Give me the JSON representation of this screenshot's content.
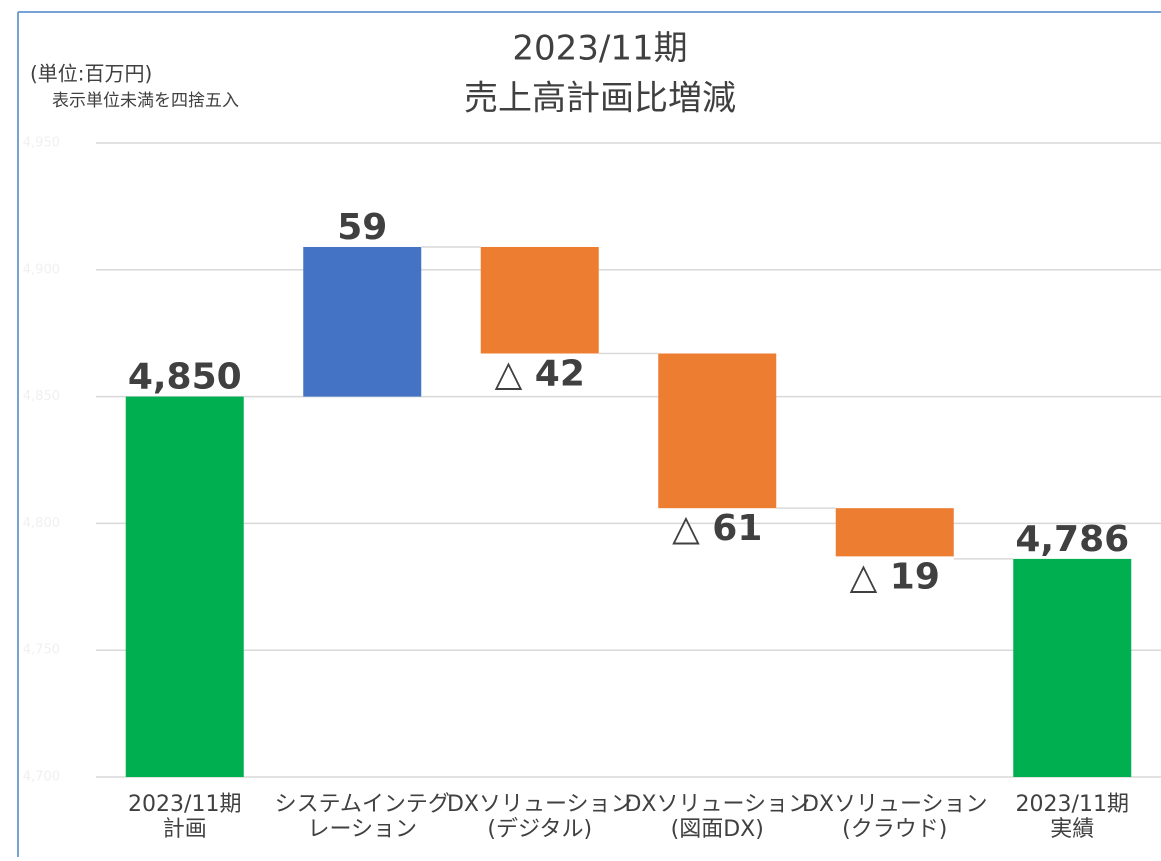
{
  "chart_data": {
    "type": "waterfall",
    "title": "2023/11期",
    "subtitle": "売上高計画比増減",
    "annotations": [
      "(単位:百万円)",
      "表示単位未満を四捨五入"
    ],
    "categories": [
      [
        "2023/11期",
        "計画"
      ],
      [
        "システムインテグ",
        "レーション"
      ],
      [
        "DXソリューション",
        "(デジタル)"
      ],
      [
        "DXソリューション",
        "(図面DX)"
      ],
      [
        "DXソリューション",
        "(クラウド)"
      ],
      [
        "2023/11期",
        "実績"
      ]
    ],
    "values": [
      4850,
      59,
      -42,
      -61,
      -19,
      4786
    ],
    "value_labels": [
      "4,850",
      "59",
      "△ 42",
      "△ 61",
      "△ 19",
      "4,786"
    ],
    "measure": [
      "absolute",
      "relative",
      "relative",
      "relative",
      "relative",
      "total"
    ],
    "colors": [
      "#00b050",
      "#4472c4",
      "#ed7d31",
      "#ed7d31",
      "#ed7d31",
      "#00b050"
    ],
    "ylim": [
      4700,
      4950
    ],
    "yticks": [
      {
        "value": 4700,
        "label": "4,700"
      },
      {
        "value": 4750,
        "label": "4,750"
      },
      {
        "value": 4800,
        "label": "4,800"
      },
      {
        "value": 4850,
        "label": "4,850"
      },
      {
        "value": 4900,
        "label": "4,900"
      },
      {
        "value": 4950,
        "label": "4,950"
      }
    ],
    "grid": true
  }
}
